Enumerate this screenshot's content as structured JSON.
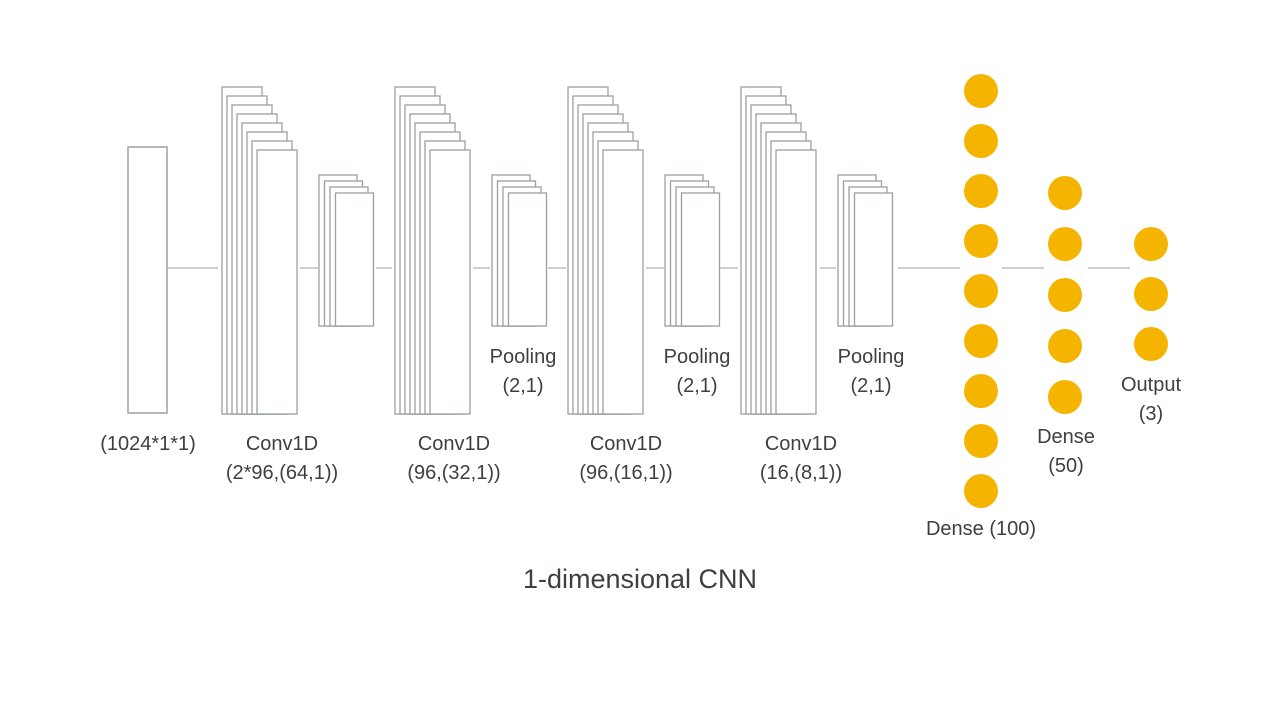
{
  "diagram": {
    "caption": "1-dimensional CNN",
    "input": {
      "lines": [
        "(1024*1*1)"
      ]
    },
    "conv_layers": [
      {
        "lines": [
          "Conv1D",
          "(2*96,(64,1))"
        ]
      },
      {
        "lines": [
          "Conv1D",
          "(96,(32,1))"
        ]
      },
      {
        "lines": [
          "Conv1D",
          "(96,(16,1))"
        ]
      },
      {
        "lines": [
          "Conv1D",
          "(16,(8,1))"
        ]
      }
    ],
    "pooling_layers": [
      {
        "lines": [
          "Pooling",
          "(2,1)"
        ]
      },
      {
        "lines": [
          "Pooling",
          "(2,1)"
        ]
      },
      {
        "lines": [
          "Pooling",
          "(2,1)"
        ]
      }
    ],
    "dense_layers": [
      {
        "lines": [
          "Dense (100)"
        ]
      },
      {
        "lines": [
          "Dense",
          "(50)"
        ]
      }
    ],
    "output_layer": {
      "lines": [
        "Output",
        "(3)"
      ]
    },
    "colors": {
      "node": "#F4B400",
      "stroke": "#9aa0a6",
      "connector": "#bdbdbd",
      "text": "#3c4043"
    }
  }
}
